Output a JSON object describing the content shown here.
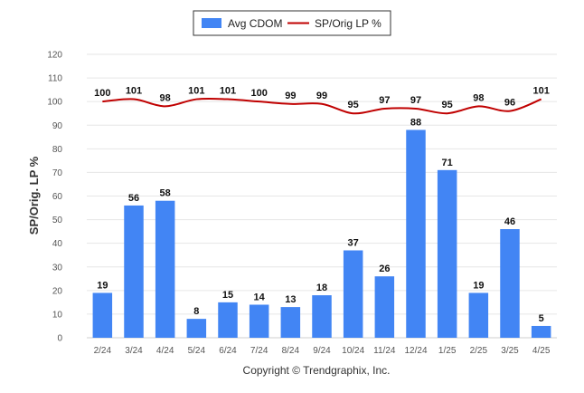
{
  "chart_data": {
    "type": "bar",
    "categories": [
      "2/24",
      "3/24",
      "4/24",
      "5/24",
      "6/24",
      "7/24",
      "8/24",
      "9/24",
      "10/24",
      "11/24",
      "12/24",
      "1/25",
      "2/25",
      "3/25",
      "4/25"
    ],
    "series": [
      {
        "name": "Avg CDOM",
        "type": "bar",
        "color": "#4285f4",
        "values": [
          19,
          56,
          58,
          8,
          15,
          14,
          13,
          18,
          37,
          26,
          88,
          71,
          19,
          46,
          5
        ]
      },
      {
        "name": "SP/Orig LP %",
        "type": "line",
        "color": "#c00000",
        "values": [
          100,
          101,
          98,
          101,
          101,
          100,
          99,
          99,
          95,
          97,
          97,
          95,
          98,
          96,
          101
        ]
      }
    ],
    "ylabel": "SP/Orig. LP %",
    "ylim": [
      0,
      120
    ],
    "yticks": [
      0,
      10,
      20,
      30,
      40,
      50,
      60,
      70,
      80,
      90,
      100,
      110,
      120
    ],
    "grid": true,
    "legend_position": "top-center",
    "credit": "Copyright © Trendgraphix, Inc."
  }
}
